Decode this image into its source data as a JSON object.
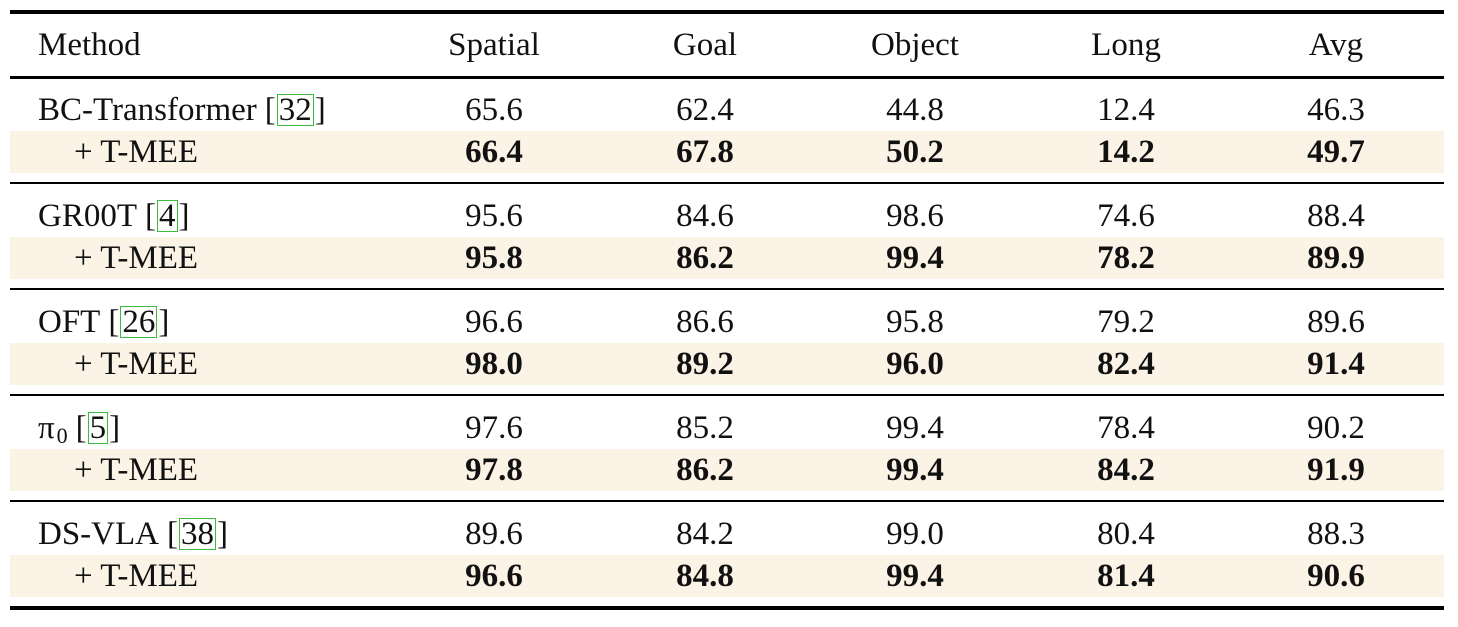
{
  "table": {
    "header": {
      "method": "Method",
      "columns": [
        "Spatial",
        "Goal",
        "Object",
        "Long",
        "Avg"
      ]
    },
    "groups": [
      {
        "base": {
          "name": "BC-Transformer",
          "ref": "32",
          "values": [
            "65.6",
            "62.4",
            "44.8",
            "12.4",
            "46.3"
          ]
        },
        "tmee": {
          "name": "+ T-MEE",
          "values": [
            "66.4",
            "67.8",
            "50.2",
            "14.2",
            "49.7"
          ]
        }
      },
      {
        "base": {
          "name": "GR00T",
          "ref": "4",
          "values": [
            "95.6",
            "84.6",
            "98.6",
            "74.6",
            "88.4"
          ]
        },
        "tmee": {
          "name": "+ T-MEE",
          "values": [
            "95.8",
            "86.2",
            "99.4",
            "78.2",
            "89.9"
          ]
        }
      },
      {
        "base": {
          "name": "OFT",
          "ref": "26",
          "values": [
            "96.6",
            "86.6",
            "95.8",
            "79.2",
            "89.6"
          ]
        },
        "tmee": {
          "name": "+ T-MEE",
          "values": [
            "98.0",
            "89.2",
            "96.0",
            "82.4",
            "91.4"
          ]
        }
      },
      {
        "base": {
          "name": "π",
          "name_sub": "0",
          "ref": "5",
          "values": [
            "97.6",
            "85.2",
            "99.4",
            "78.4",
            "90.2"
          ]
        },
        "tmee": {
          "name": "+ T-MEE",
          "values": [
            "97.8",
            "86.2",
            "99.4",
            "84.2",
            "91.9"
          ]
        }
      },
      {
        "base": {
          "name": "DS-VLA",
          "ref": "38",
          "values": [
            "89.6",
            "84.2",
            "99.0",
            "80.4",
            "88.3"
          ]
        },
        "tmee": {
          "name": "+ T-MEE",
          "values": [
            "96.6",
            "84.8",
            "99.4",
            "81.4",
            "90.6"
          ]
        }
      }
    ],
    "colors": {
      "highlight_row": "#fbf3e6",
      "citation_box": "#3dbb3d"
    }
  }
}
